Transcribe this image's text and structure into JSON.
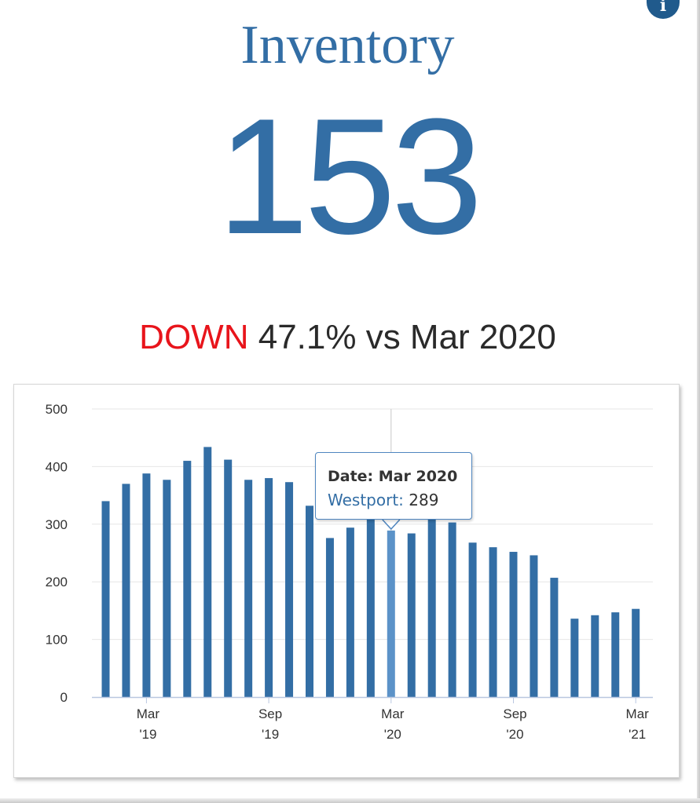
{
  "header": {
    "title": "Inventory",
    "value": "153",
    "change_direction": "DOWN",
    "change_text": "47.1% vs Mar 2020",
    "info_icon": "info-icon"
  },
  "colors": {
    "accent": "#336ea5",
    "bar": "#336ea5",
    "bar_highlight": "#5b92c8",
    "down": "#e8141b"
  },
  "tooltip": {
    "date_label": "Date: Mar 2020",
    "series_label": "Westport:",
    "value": "289"
  },
  "chart_data": {
    "type": "bar",
    "series": [
      {
        "name": "Westport",
        "x": [
          "Jan 2019",
          "Feb 2019",
          "Mar 2019",
          "Apr 2019",
          "May 2019",
          "Jun 2019",
          "Jul 2019",
          "Aug 2019",
          "Sep 2019",
          "Oct 2019",
          "Nov 2019",
          "Dec 2019",
          "Jan 2020",
          "Feb 2020",
          "Mar 2020",
          "Apr 2020",
          "May 2020",
          "Jun 2020",
          "Jul 2020",
          "Aug 2020",
          "Sep 2020",
          "Oct 2020",
          "Nov 2020",
          "Dec 2020",
          "Jan 2021",
          "Feb 2021",
          "Mar 2021"
        ],
        "values": [
          340,
          370,
          388,
          377,
          410,
          434,
          412,
          377,
          380,
          373,
          332,
          276,
          294,
          310,
          289,
          284,
          308,
          303,
          268,
          260,
          252,
          246,
          207,
          136,
          142,
          147,
          153
        ]
      }
    ],
    "highlight": "Mar 2020",
    "x_tick_labels": [
      {
        "at": "Mar 2019",
        "line1": "Mar",
        "line2": "'19"
      },
      {
        "at": "Sep 2019",
        "line1": "Sep",
        "line2": "'19"
      },
      {
        "at": "Mar 2020",
        "line1": "Mar",
        "line2": "'20"
      },
      {
        "at": "Sep 2020",
        "line1": "Sep",
        "line2": "'20"
      },
      {
        "at": "Mar 2021",
        "line1": "Mar",
        "line2": "'21"
      }
    ],
    "y_ticks": [
      "0",
      "100",
      "200",
      "300",
      "400",
      "500"
    ],
    "ylim": [
      0,
      500
    ],
    "grid": true
  }
}
